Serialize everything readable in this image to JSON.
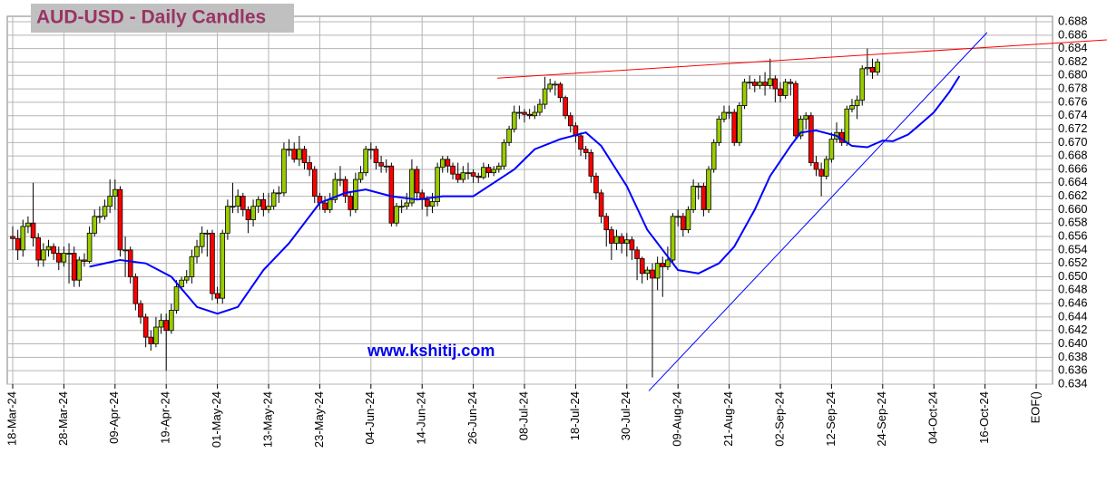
{
  "chart_data": {
    "type": "candlestick",
    "title": "AUD-USD - Daily Candles",
    "annotations": [
      "www.kshitij.com"
    ],
    "up_color": "#99cc00",
    "down_color": "#ff0000",
    "grid": true,
    "categories": [
      "18-Mar-24",
      null,
      null,
      null,
      null,
      null,
      null,
      null,
      null,
      null,
      "28-Mar-24",
      null,
      null,
      null,
      null,
      null,
      null,
      null,
      null,
      null,
      "09-Apr-24",
      null,
      null,
      null,
      null,
      null,
      null,
      null,
      null,
      null,
      "19-Apr-24",
      null,
      null,
      null,
      null,
      null,
      null,
      null,
      null,
      null,
      "01-May-24",
      null,
      null,
      null,
      null,
      null,
      null,
      null,
      null,
      null,
      "13-May-24",
      null,
      null,
      null,
      null,
      null,
      null,
      null,
      null,
      null,
      "23-May-24",
      null,
      null,
      null,
      null,
      null,
      null,
      null,
      null,
      null,
      "04-Jun-24",
      null,
      null,
      null,
      null,
      null,
      null,
      null,
      null,
      null,
      "14-Jun-24",
      null,
      null,
      null,
      null,
      null,
      null,
      null,
      null,
      null,
      "26-Jun-24",
      null,
      null,
      null,
      null,
      null,
      null,
      null,
      null,
      null,
      "08-Jul-24",
      null,
      null,
      null,
      null,
      null,
      null,
      null,
      null,
      null,
      "18-Jul-24",
      null,
      null,
      null,
      null,
      null,
      null,
      null,
      null,
      null,
      "30-Jul-24",
      null,
      null,
      null,
      null,
      null,
      null,
      null,
      null,
      null,
      "09-Aug-24",
      null,
      null,
      null,
      null,
      null,
      null,
      null,
      null,
      null,
      "21-Aug-24",
      null,
      null,
      null,
      null,
      null,
      null,
      null,
      null,
      null,
      "02-Sep-24",
      null,
      null,
      null,
      null,
      null,
      null,
      null,
      null,
      null,
      "12-Sep-24",
      null,
      null,
      null,
      null,
      null,
      null,
      null,
      null,
      null,
      "24-Sep-24",
      null,
      null,
      null,
      null,
      null,
      null,
      null,
      null,
      null,
      "04-Oct-24",
      null,
      null,
      null,
      null,
      null,
      null,
      null,
      null,
      null,
      "16-Oct-24",
      null,
      null,
      null,
      null,
      null,
      null,
      null,
      null,
      null,
      "EOF()"
    ],
    "open": [
      0.656,
      0.6557,
      0.654,
      0.6575,
      0.658,
      0.6558,
      0.6525,
      0.654,
      0.6545,
      0.6535,
      0.6522,
      0.6535,
      0.6535,
      0.6495,
      0.6525,
      0.6523,
      0.6565,
      0.659,
      0.659,
      0.6605,
      0.662,
      0.663,
      0.654,
      0.654,
      0.65,
      0.646,
      0.644,
      0.641,
      0.64,
      0.6425,
      0.6435,
      0.642,
      0.645,
      0.6485,
      0.6495,
      0.65,
      0.653,
      0.6545,
      0.6565,
      0.6565,
      0.6475,
      0.6468,
      0.6565,
      0.6605,
      0.6605,
      0.662,
      0.66,
      0.6585,
      0.6605,
      0.6615,
      0.66,
      0.6605,
      0.6625,
      0.6625,
      0.669,
      0.669,
      0.6675,
      0.669,
      0.667,
      0.666,
      0.662,
      0.661,
      0.66,
      0.6615,
      0.6645,
      0.6645,
      0.662,
      0.66,
      0.6645,
      0.6655,
      0.669,
      0.669,
      0.667,
      0.6665,
      0.6665,
      0.658,
      0.6605,
      0.6605,
      0.661,
      0.666,
      0.6625,
      0.6615,
      0.6605,
      0.6612,
      0.6663,
      0.6675,
      0.6665,
      0.6653,
      0.6645,
      0.6655,
      0.6655,
      0.665,
      0.6648,
      0.6663,
      0.6655,
      0.666,
      0.6665,
      0.67,
      0.672,
      0.6745,
      0.6745,
      0.6742,
      0.674,
      0.6745,
      0.6757,
      0.678,
      0.6787,
      0.6787,
      0.6767,
      0.674,
      0.6725,
      0.671,
      0.669,
      0.6685,
      0.665,
      0.6625,
      0.659,
      0.657,
      0.655,
      0.656,
      0.655,
      0.6555,
      0.654,
      0.6527,
      0.6505,
      0.651,
      0.6498,
      0.652,
      0.6515,
      0.6525,
      0.659,
      0.659,
      0.657,
      0.66,
      0.6635,
      0.6635,
      0.66,
      0.666,
      0.67,
      0.6735,
      0.6745,
      0.6745,
      0.67,
      0.6755,
      0.679,
      0.679,
      0.6785,
      0.679,
      0.6785,
      0.6795,
      0.678,
      0.677,
      0.679,
      0.6788,
      0.671,
      0.6735,
      0.674,
      0.667,
      0.666,
      0.665,
      0.6675,
      0.6705,
      0.6715,
      0.67,
      0.675,
      0.6755,
      0.6763,
      0.681,
      0.6812,
      0.6805,
      null,
      null,
      null,
      null,
      null,
      null,
      null,
      null,
      null,
      null,
      null,
      null,
      null,
      null,
      null,
      null,
      null,
      null,
      null,
      null,
      null,
      null,
      null,
      null,
      null,
      null,
      null,
      null,
      null,
      null,
      null
    ],
    "high": [
      0.6575,
      0.657,
      0.6585,
      0.659,
      0.664,
      0.6565,
      0.655,
      0.6555,
      0.655,
      0.6545,
      0.6545,
      0.655,
      0.6545,
      0.653,
      0.6535,
      0.6575,
      0.66,
      0.6605,
      0.6615,
      0.6645,
      0.6645,
      0.6635,
      0.656,
      0.6545,
      0.6505,
      0.6465,
      0.6445,
      0.642,
      0.644,
      0.6445,
      0.6445,
      0.646,
      0.6495,
      0.65,
      0.651,
      0.654,
      0.6555,
      0.6575,
      0.657,
      0.657,
      0.6485,
      0.657,
      0.6615,
      0.664,
      0.663,
      0.6625,
      0.6605,
      0.6615,
      0.662,
      0.6625,
      0.6625,
      0.663,
      0.6635,
      0.67,
      0.6705,
      0.67,
      0.671,
      0.6695,
      0.668,
      0.6665,
      0.6625,
      0.662,
      0.6625,
      0.6655,
      0.6665,
      0.665,
      0.6625,
      0.6655,
      0.6665,
      0.6695,
      0.67,
      0.6695,
      0.668,
      0.6675,
      0.667,
      0.661,
      0.6615,
      0.6625,
      0.6675,
      0.6665,
      0.663,
      0.662,
      0.6625,
      0.667,
      0.668,
      0.668,
      0.667,
      0.667,
      0.6665,
      0.667,
      0.666,
      0.6655,
      0.667,
      0.6668,
      0.6665,
      0.667,
      0.6705,
      0.6725,
      0.6755,
      0.6755,
      0.675,
      0.675,
      0.6755,
      0.6765,
      0.6798,
      0.6795,
      0.6792,
      0.679,
      0.677,
      0.6745,
      0.673,
      0.6715,
      0.6695,
      0.669,
      0.6655,
      0.663,
      0.6595,
      0.6575,
      0.657,
      0.6565,
      0.6565,
      0.656,
      0.6545,
      0.653,
      0.6515,
      0.652,
      0.653,
      0.653,
      0.6545,
      0.6595,
      0.66,
      0.6595,
      0.6605,
      0.6645,
      0.664,
      0.664,
      0.6665,
      0.6705,
      0.674,
      0.6755,
      0.6755,
      0.675,
      0.676,
      0.6795,
      0.68,
      0.6795,
      0.68,
      0.6805,
      0.6825,
      0.68,
      0.679,
      0.6795,
      0.6795,
      0.6792,
      0.674,
      0.6745,
      0.6745,
      0.668,
      0.667,
      0.668,
      0.6715,
      0.673,
      0.672,
      0.6755,
      0.6765,
      0.677,
      0.6815,
      0.684,
      0.6825,
      0.6825,
      null,
      null,
      null,
      null,
      null,
      null,
      null,
      null,
      null,
      null,
      null,
      null,
      null,
      null,
      null,
      null,
      null,
      null,
      null,
      null,
      null,
      null,
      null,
      null,
      null,
      null,
      null,
      null,
      null,
      null,
      null
    ],
    "low": [
      0.654,
      0.6525,
      0.653,
      0.6565,
      0.6545,
      0.6515,
      0.6515,
      0.653,
      0.6525,
      0.651,
      0.6515,
      0.649,
      0.6485,
      0.6485,
      0.6515,
      0.652,
      0.656,
      0.658,
      0.6585,
      0.6595,
      0.66,
      0.653,
      0.65,
      0.649,
      0.645,
      0.643,
      0.6395,
      0.639,
      0.6395,
      0.6415,
      0.636,
      0.6415,
      0.6445,
      0.648,
      0.649,
      0.649,
      0.652,
      0.6535,
      0.653,
      0.6465,
      0.646,
      0.646,
      0.6555,
      0.6595,
      0.6595,
      0.659,
      0.6565,
      0.6575,
      0.6595,
      0.659,
      0.6595,
      0.66,
      0.661,
      0.662,
      0.668,
      0.667,
      0.6665,
      0.666,
      0.665,
      0.661,
      0.66,
      0.6595,
      0.6595,
      0.661,
      0.6635,
      0.661,
      0.659,
      0.6595,
      0.664,
      0.665,
      0.6675,
      0.666,
      0.6655,
      0.6655,
      0.6575,
      0.6575,
      0.6595,
      0.66,
      0.6605,
      0.6615,
      0.66,
      0.659,
      0.6595,
      0.6605,
      0.6655,
      0.6655,
      0.6645,
      0.664,
      0.664,
      0.6645,
      0.664,
      0.664,
      0.6645,
      0.6648,
      0.665,
      0.6655,
      0.666,
      0.6695,
      0.6715,
      0.6735,
      0.673,
      0.6735,
      0.6735,
      0.674,
      0.675,
      0.6775,
      0.677,
      0.676,
      0.6735,
      0.6715,
      0.67,
      0.668,
      0.6675,
      0.664,
      0.6615,
      0.658,
      0.6545,
      0.6525,
      0.654,
      0.6535,
      0.653,
      0.6525,
      0.6495,
      0.649,
      0.6495,
      0.635,
      0.648,
      0.647,
      0.651,
      0.652,
      0.6575,
      0.656,
      0.6565,
      0.6595,
      0.6615,
      0.659,
      0.6595,
      0.6655,
      0.6695,
      0.673,
      0.6735,
      0.6695,
      0.6695,
      0.675,
      0.678,
      0.6775,
      0.678,
      0.677,
      0.678,
      0.676,
      0.676,
      0.6765,
      0.677,
      0.6705,
      0.6705,
      0.672,
      0.6665,
      0.665,
      0.662,
      0.6645,
      0.667,
      0.67,
      0.6695,
      0.6695,
      0.6745,
      0.6735,
      0.6755,
      0.68,
      0.6795,
      0.68,
      null,
      null,
      null,
      null,
      null,
      null,
      null,
      null,
      null,
      null,
      null,
      null,
      null,
      null,
      null,
      null,
      null,
      null,
      null,
      null,
      null,
      null,
      null,
      null,
      null,
      null,
      null,
      null,
      null,
      null,
      null
    ],
    "close": [
      0.6557,
      0.654,
      0.6575,
      0.658,
      0.6558,
      0.6525,
      0.654,
      0.6545,
      0.6535,
      0.6522,
      0.6535,
      0.6535,
      0.6495,
      0.6525,
      0.6523,
      0.6565,
      0.659,
      0.659,
      0.6605,
      0.662,
      0.663,
      0.654,
      0.654,
      0.65,
      0.646,
      0.644,
      0.641,
      0.64,
      0.6425,
      0.6435,
      0.642,
      0.645,
      0.6485,
      0.6495,
      0.65,
      0.653,
      0.6545,
      0.6565,
      0.6565,
      0.6475,
      0.6468,
      0.6565,
      0.6605,
      0.6605,
      0.662,
      0.66,
      0.6585,
      0.6605,
      0.6615,
      0.66,
      0.6605,
      0.6625,
      0.6625,
      0.669,
      0.669,
      0.6675,
      0.669,
      0.667,
      0.666,
      0.662,
      0.661,
      0.66,
      0.6615,
      0.6645,
      0.6645,
      0.662,
      0.66,
      0.6645,
      0.6655,
      0.669,
      0.669,
      0.667,
      0.6665,
      0.6665,
      0.658,
      0.6605,
      0.6605,
      0.661,
      0.666,
      0.6625,
      0.6615,
      0.6605,
      0.6612,
      0.6663,
      0.6675,
      0.6665,
      0.6653,
      0.6645,
      0.6655,
      0.6655,
      0.665,
      0.6648,
      0.6663,
      0.6655,
      0.666,
      0.6665,
      0.67,
      0.672,
      0.6745,
      0.6745,
      0.6742,
      0.674,
      0.6745,
      0.6757,
      0.678,
      0.6787,
      0.6787,
      0.6767,
      0.674,
      0.6725,
      0.671,
      0.669,
      0.6685,
      0.665,
      0.6625,
      0.659,
      0.657,
      0.655,
      0.656,
      0.655,
      0.6555,
      0.654,
      0.6527,
      0.6505,
      0.651,
      0.6498,
      0.652,
      0.6515,
      0.6525,
      0.659,
      0.659,
      0.657,
      0.66,
      0.6635,
      0.6635,
      0.66,
      0.666,
      0.67,
      0.6735,
      0.6745,
      0.6745,
      0.67,
      0.6755,
      0.679,
      0.679,
      0.6785,
      0.679,
      0.6785,
      0.6795,
      0.678,
      0.677,
      0.679,
      0.6788,
      0.671,
      0.6735,
      0.674,
      0.667,
      0.666,
      0.665,
      0.6675,
      0.6705,
      0.6715,
      0.67,
      0.675,
      0.6755,
      0.6763,
      0.681,
      0.6812,
      0.6805,
      0.682,
      null,
      null,
      null,
      null,
      null,
      null,
      null,
      null,
      null,
      null,
      null,
      null,
      null,
      null,
      null,
      null,
      null,
      null,
      null,
      null,
      null,
      null,
      null,
      null,
      null,
      null,
      null,
      null,
      null,
      null,
      null
    ],
    "moving_average": {
      "color": "#0000ff",
      "x": [
        15,
        21,
        26,
        31,
        36,
        40,
        44,
        49,
        54,
        60,
        65,
        69,
        74,
        79,
        84,
        90,
        94,
        98,
        102,
        107,
        112,
        115,
        120,
        124,
        130,
        134,
        138,
        141,
        145,
        148,
        152,
        154,
        157,
        161,
        164,
        167,
        170,
        172,
        175,
        177,
        180,
        183,
        185
      ],
      "values": [
        0.6515,
        0.6525,
        0.652,
        0.65,
        0.6455,
        0.6445,
        0.6455,
        0.651,
        0.655,
        0.661,
        0.6625,
        0.663,
        0.662,
        0.6615,
        0.662,
        0.662,
        0.664,
        0.666,
        0.669,
        0.6705,
        0.6715,
        0.6695,
        0.6635,
        0.657,
        0.651,
        0.6505,
        0.652,
        0.6545,
        0.66,
        0.665,
        0.6695,
        0.6715,
        0.6718,
        0.671,
        0.6695,
        0.6693,
        0.6703,
        0.6702,
        0.6712,
        0.6725,
        0.6745,
        0.6775,
        0.6799
      ]
    },
    "trend_lines": [
      {
        "color": "#ff0000",
        "x": [
          94.7,
          213.8
        ],
        "values": [
          0.6796,
          0.6853
        ]
      },
      {
        "color": "#0000ff",
        "x": [
          124.3,
          190.4
        ],
        "values": [
          0.633,
          0.6864
        ]
      }
    ],
    "ylim": [
      0.634,
      0.688
    ],
    "yticks": [
      0.634,
      0.636,
      0.638,
      {
        "value": 0.64,
        "label": "0.640"
      },
      0.642,
      0.644,
      0.646,
      0.648,
      {
        "value": 0.65,
        "label": "0.650"
      },
      0.652,
      0.654,
      0.656,
      0.658,
      {
        "value": 0.66,
        "label": "0.660"
      },
      0.662,
      0.664,
      0.666,
      0.668,
      {
        "value": 0.67,
        "label": "0.670"
      },
      0.672,
      0.674,
      0.676,
      0.678,
      {
        "value": 0.68,
        "label": "0.680"
      },
      0.682,
      0.684,
      0.686,
      0.688
    ]
  }
}
